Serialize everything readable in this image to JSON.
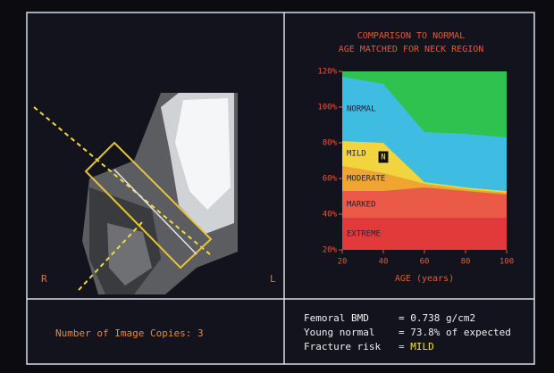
{
  "scan_panel": {
    "label_right_side": "R",
    "label_left_side": "L"
  },
  "chart_data": {
    "type": "area",
    "title": "COMPARISON TO NORMAL",
    "subtitle": "AGE MATCHED FOR NECK REGION",
    "x_label": "AGE (years)",
    "x": [
      20,
      40,
      60,
      80,
      100
    ],
    "xlim": [
      20,
      100
    ],
    "xticks": [
      20,
      40,
      60,
      80,
      100
    ],
    "ylim": [
      20,
      120
    ],
    "yticks": [
      {
        "value": 20,
        "label": "20%"
      },
      {
        "value": 40,
        "label": "40%"
      },
      {
        "value": 60,
        "label": "60%"
      },
      {
        "value": 80,
        "label": "80%"
      },
      {
        "value": 100,
        "label": "100%"
      },
      {
        "value": 120,
        "label": "120%"
      }
    ],
    "background_color": "#2fc24e",
    "series": [
      {
        "name": "EXTREME",
        "color": "#e23a3a",
        "values": [
          38,
          38,
          38,
          38,
          38
        ]
      },
      {
        "name": "MARKED",
        "color": "#ea5a46",
        "values": [
          53,
          53,
          55,
          53,
          51
        ]
      },
      {
        "name": "MODERATE",
        "color": "#f2a431",
        "values": [
          67,
          63,
          57,
          54,
          52
        ]
      },
      {
        "name": "MILD",
        "color": "#f1d43e",
        "values": [
          81,
          80,
          58,
          55,
          53
        ]
      },
      {
        "name": "NORMAL",
        "color": "#3fbce2",
        "values": [
          117,
          113,
          86,
          85,
          83
        ]
      }
    ],
    "patient": {
      "x": 40,
      "y": 72,
      "label": "N"
    }
  },
  "footer": {
    "copies": "Number of Image Copies: 3",
    "results": [
      [
        "Femoral BMD",
        "= 0.738 g/cm2"
      ],
      [
        "Young normal",
        "= 73.8% of expected"
      ],
      [
        "Fracture risk",
        "= MILD"
      ]
    ]
  }
}
